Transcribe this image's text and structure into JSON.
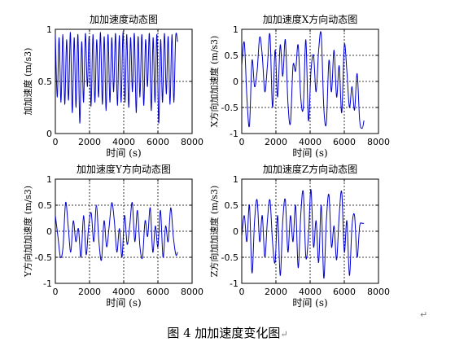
{
  "figure_caption": "图 4  加加速度变化图",
  "return_mark": "↵",
  "chart_data": [
    {
      "type": "line",
      "title": "加加速度动态图",
      "xlabel": "时间 (s)",
      "ylabel": "加加速度 (m/s3)",
      "xlim": [
        0,
        8000
      ],
      "ylim": [
        0,
        1
      ],
      "xticks": [
        0,
        2000,
        4000,
        6000,
        8000
      ],
      "yticks": [
        0,
        0.5,
        1
      ],
      "xtick_labels": [
        "0",
        "2000",
        "4000",
        "6000",
        "8000"
      ],
      "ytick_labels": [
        "0",
        "0.5",
        "1"
      ],
      "grid": true,
      "color": "#0000cc",
      "series": [
        {
          "x": [
            0,
            110,
            220,
            330,
            440,
            550,
            660,
            770,
            880,
            990,
            1100,
            1210,
            1320,
            1430,
            1540,
            1650,
            1760,
            1870,
            1980,
            2090,
            2200,
            2310,
            2420,
            2530,
            2640,
            2750,
            2860,
            2970,
            3080,
            3190,
            3300,
            3410,
            3520,
            3630,
            3740,
            3850,
            3960,
            4070,
            4180,
            4290,
            4400,
            4510,
            4620,
            4730,
            4840,
            4950,
            5060,
            5170,
            5280,
            5390,
            5500,
            5610,
            5720,
            5830,
            5940,
            6050,
            6160,
            6270,
            6380,
            6490,
            6600,
            6710,
            6820,
            6930,
            7040,
            7150
          ],
          "values": [
            0.95,
            0.35,
            0.92,
            0.3,
            0.95,
            0.28,
            0.9,
            0.32,
            0.97,
            0.2,
            0.92,
            0.25,
            0.95,
            0.1,
            0.88,
            0.3,
            0.96,
            0.45,
            0.93,
            0.26,
            0.95,
            0.3,
            0.9,
            0.35,
            0.97,
            0.28,
            0.93,
            0.22,
            0.95,
            0.3,
            0.92,
            0.4,
            0.96,
            0.27,
            0.94,
            0.3,
            0.98,
            0.3,
            0.95,
            0.25,
            0.92,
            0.4,
            0.96,
            0.2,
            0.93,
            0.35,
            0.95,
            0.27,
            0.9,
            0.45,
            0.96,
            0.22,
            0.92,
            0.3,
            0.95,
            0.1,
            0.9,
            0.3,
            0.96,
            0.38,
            0.93,
            0.28,
            0.95,
            0.3,
            0.93,
            0.88
          ]
        }
      ]
    },
    {
      "type": "line",
      "title": "加加速度X方向动态图",
      "xlabel": "时间 (s)",
      "ylabel": "X方向加加速度 (m/s3)",
      "xlim": [
        0,
        8000
      ],
      "ylim": [
        -1,
        1
      ],
      "xticks": [
        0,
        2000,
        4000,
        6000,
        8000
      ],
      "yticks": [
        -1,
        -0.5,
        0,
        0.5,
        1
      ],
      "xtick_labels": [
        "0",
        "2000",
        "4000",
        "6000",
        "8000"
      ],
      "ytick_labels": [
        "-1",
        "-0.5",
        "0",
        "0.5",
        "1"
      ],
      "grid": true,
      "color": "#0000cc",
      "series": [
        {
          "x": [
            0,
            150,
            300,
            450,
            600,
            750,
            900,
            1050,
            1200,
            1350,
            1500,
            1650,
            1800,
            1950,
            2100,
            2250,
            2400,
            2550,
            2700,
            2850,
            3000,
            3150,
            3300,
            3450,
            3600,
            3750,
            3900,
            4050,
            4200,
            4350,
            4500,
            4650,
            4800,
            4950,
            5100,
            5250,
            5400,
            5550,
            5700,
            5850,
            6000,
            6150,
            6300,
            6450,
            6600,
            6750,
            6900,
            7050,
            7150
          ],
          "values": [
            0.3,
            0.75,
            -0.3,
            -0.85,
            0.4,
            -0.1,
            0.2,
            0.85,
            0.5,
            -0.2,
            0.3,
            0.9,
            -0.5,
            0.6,
            -0.3,
            0.7,
            0.1,
            0.8,
            -0.4,
            -0.8,
            0.3,
            0.2,
            0.7,
            -0.3,
            -0.5,
            0.8,
            -0.75,
            0.2,
            0.5,
            -0.2,
            0.6,
            0.9,
            -0.5,
            -0.8,
            0.4,
            -0.2,
            0.6,
            -0.3,
            0.3,
            -0.6,
            0.7,
            0.2,
            -0.5,
            -0.1,
            -0.55,
            0.15,
            -0.75,
            -0.9,
            -0.75
          ]
        }
      ]
    },
    {
      "type": "line",
      "title": "加加速度Y方向动态图",
      "xlabel": "时间 (s)",
      "ylabel": "Y方向加加速度 (m/s3)",
      "xlim": [
        0,
        8000
      ],
      "ylim": [
        -1,
        1
      ],
      "xticks": [
        0,
        2000,
        4000,
        6000,
        8000
      ],
      "yticks": [
        -1,
        -0.5,
        0,
        0.5,
        1
      ],
      "xtick_labels": [
        "0",
        "2000",
        "4000",
        "6000",
        "8000"
      ],
      "ytick_labels": [
        "-1",
        "-0.5",
        "0",
        "0.5",
        "1"
      ],
      "grid": true,
      "color": "#0000cc",
      "series": [
        {
          "x": [
            0,
            150,
            300,
            450,
            600,
            750,
            900,
            1050,
            1200,
            1350,
            1500,
            1650,
            1800,
            1950,
            2100,
            2250,
            2400,
            2550,
            2700,
            2850,
            3000,
            3150,
            3300,
            3450,
            3600,
            3750,
            3900,
            4050,
            4200,
            4350,
            4500,
            4650,
            4800,
            4950,
            5100,
            5250,
            5400,
            5550,
            5700,
            5850,
            6000,
            6150,
            6300,
            6450,
            6600,
            6750,
            6900,
            7050,
            7150
          ],
          "values": [
            0.3,
            -0.1,
            -0.5,
            -0.3,
            0.55,
            0.1,
            -0.4,
            0.2,
            -0.2,
            0.05,
            -0.5,
            0.3,
            -0.45,
            0.1,
            0.35,
            -0.2,
            0.5,
            -0.2,
            -0.55,
            0.2,
            -0.3,
            0.1,
            0.55,
            0.2,
            -0.4,
            0.05,
            -0.5,
            0.3,
            -0.25,
            0.1,
            0.55,
            -0.2,
            0.4,
            -0.3,
            -0.5,
            0.2,
            -0.1,
            0.45,
            -0.4,
            0.1,
            -0.3,
            0.4,
            -0.5,
            0.1,
            -0.2,
            0.45,
            -0.1,
            -0.45,
            -0.4
          ]
        }
      ]
    },
    {
      "type": "line",
      "title": "加加速度Z方向动态图",
      "xlabel": "时间 (s)",
      "ylabel": "Z方向加加速度 (m/s3)",
      "xlim": [
        0,
        8000
      ],
      "ylim": [
        -1,
        1
      ],
      "xticks": [
        0,
        2000,
        4000,
        6000,
        8000
      ],
      "yticks": [
        -1,
        -0.5,
        0,
        0.5,
        1
      ],
      "xtick_labels": [
        "0",
        "2000",
        "4000",
        "6000",
        "8000"
      ],
      "ytick_labels": [
        "-1",
        "-0.5",
        "0",
        "0.5",
        "1"
      ],
      "grid": true,
      "color": "#0000cc",
      "series": [
        {
          "x": [
            0,
            150,
            300,
            450,
            600,
            750,
            900,
            1050,
            1200,
            1350,
            1500,
            1650,
            1800,
            1950,
            2100,
            2250,
            2400,
            2550,
            2700,
            2850,
            3000,
            3150,
            3300,
            3450,
            3600,
            3750,
            3900,
            4050,
            4200,
            4350,
            4500,
            4650,
            4800,
            4950,
            5100,
            5250,
            5400,
            5550,
            5700,
            5850,
            6000,
            6150,
            6300,
            6450,
            6600,
            6750,
            6900,
            7050,
            7150
          ],
          "values": [
            -0.1,
            0.3,
            -0.2,
            0.5,
            -0.8,
            0.2,
            0.6,
            -0.2,
            0.3,
            -0.5,
            0.2,
            0.6,
            -0.2,
            -0.6,
            0.3,
            -0.85,
            0.2,
            0.6,
            -0.4,
            0.3,
            -0.2,
            0.5,
            -0.7,
            0.3,
            0.75,
            -0.5,
            -0.1,
            0.8,
            -0.3,
            0.2,
            -0.6,
            0.5,
            -0.9,
            0.2,
            0.7,
            -0.3,
            0.1,
            -0.55,
            0.3,
            0.75,
            -0.4,
            0.2,
            -0.85,
            0.1,
            0.3,
            -0.5,
            0.1,
            0.15,
            0.15
          ]
        }
      ]
    }
  ]
}
